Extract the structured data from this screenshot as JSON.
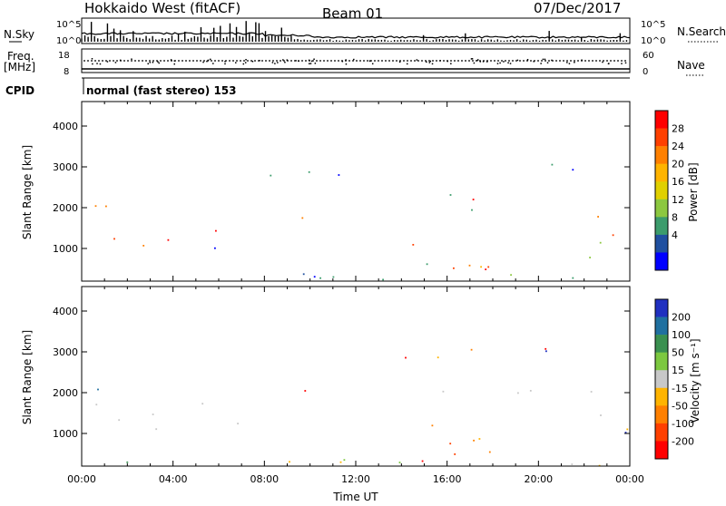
{
  "header": {
    "site": "Hokkaido West (fitACF)",
    "beam": "Beam 01",
    "date": "07/Dec/2017"
  },
  "panels": {
    "nsky_label": "N.Sky",
    "nsearch_label": "N.Search",
    "nsky_ticks": [
      "10^5",
      "10^0"
    ],
    "nsearch_ticks": [
      "10^5",
      "10^0"
    ],
    "freq_label_line1": "Freq.",
    "freq_label_line2": "[MHz]",
    "freq_ticks": [
      "18",
      "8"
    ],
    "nave_label": "Nave",
    "nave_ticks": [
      "60",
      "0"
    ],
    "cpid_label": "CPID",
    "cpid_text": "normal (fast stereo) 153"
  },
  "chart_data": [
    {
      "type": "heatmap",
      "panel": "power",
      "ylabel": "Slant Range [km]",
      "xlabel": "Time UT",
      "x_ticks": [
        "00:00",
        "04:00",
        "08:00",
        "12:00",
        "16:00",
        "20:00",
        "00:00"
      ],
      "y_ticks": [
        1000,
        2000,
        3000,
        4000
      ],
      "ylim": [
        200,
        4600
      ],
      "xlim_hours": [
        0,
        24
      ],
      "colorbar_label": "Power [dB]",
      "colorbar_ticks": [
        "28",
        "24",
        "20",
        "16",
        "12",
        "8",
        "4"
      ],
      "colorbar_colors": [
        "#ff0000",
        "#ff4000",
        "#ff8000",
        "#ffb400",
        "#e0d000",
        "#8cc840",
        "#3c9c6c",
        "#2050a0",
        "#0000ff"
      ]
    },
    {
      "type": "heatmap",
      "panel": "velocity",
      "ylabel": "Slant Range [km]",
      "xlabel": "Time UT",
      "x_ticks": [
        "00:00",
        "04:00",
        "08:00",
        "12:00",
        "16:00",
        "20:00",
        "00:00"
      ],
      "y_ticks": [
        1000,
        2000,
        3000,
        4000
      ],
      "ylim": [
        200,
        4600
      ],
      "xlim_hours": [
        0,
        24
      ],
      "colorbar_label": "Velocity [m s⁻¹]",
      "colorbar_ticks": [
        "200",
        "100",
        "50",
        "15",
        "-15",
        "-50",
        "-100",
        "-200"
      ],
      "colorbar_colors": [
        "#2030c0",
        "#2070a0",
        "#3a9050",
        "#7cc840",
        "#c8c8c8",
        "#ffb400",
        "#ff8000",
        "#ff4000",
        "#ff0000"
      ]
    }
  ],
  "colors": {
    "ground_scatter": "#c8c8c8"
  }
}
